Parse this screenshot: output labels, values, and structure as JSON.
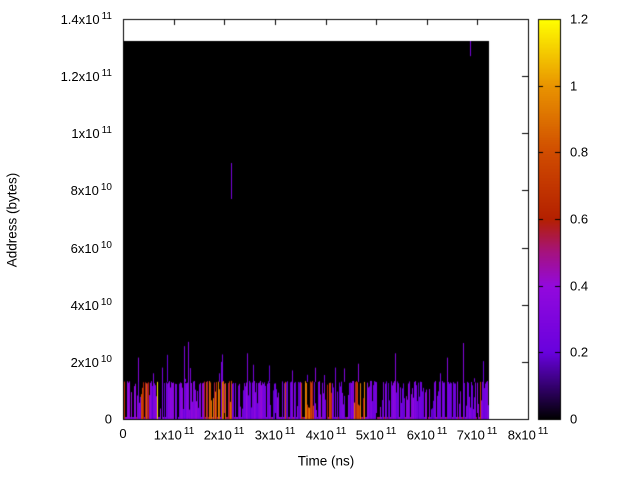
{
  "chart_data": {
    "type": "heatmap",
    "title": "",
    "xlabel": "Time (ns)",
    "ylabel": "Address (bytes)",
    "xlim": [
      0,
      800000000000.0
    ],
    "ylim": [
      0,
      140000000000.0
    ],
    "grid": false,
    "plot_background": "#ffffff",
    "data_background": "#000000",
    "x_ticks": [
      {
        "label_m": "0",
        "label_e": "",
        "value": 0
      },
      {
        "label_m": "1x10",
        "label_e": "11",
        "value": 100000000000.0
      },
      {
        "label_m": "2x10",
        "label_e": "11",
        "value": 200000000000.0
      },
      {
        "label_m": "3x10",
        "label_e": "11",
        "value": 300000000000.0
      },
      {
        "label_m": "4x10",
        "label_e": "11",
        "value": 400000000000.0
      },
      {
        "label_m": "5x10",
        "label_e": "11",
        "value": 500000000000.0
      },
      {
        "label_m": "6x10",
        "label_e": "11",
        "value": 600000000000.0
      },
      {
        "label_m": "7x10",
        "label_e": "11",
        "value": 700000000000.0
      },
      {
        "label_m": "8x10",
        "label_e": "11",
        "value": 800000000000.0
      }
    ],
    "y_ticks": [
      {
        "label_m": "0",
        "label_e": "",
        "value": 0
      },
      {
        "label_m": "2x10",
        "label_e": "10",
        "value": 20000000000.0
      },
      {
        "label_m": "4x10",
        "label_e": "10",
        "value": 40000000000.0
      },
      {
        "label_m": "6x10",
        "label_e": "10",
        "value": 60000000000.0
      },
      {
        "label_m": "8x10",
        "label_e": "10",
        "value": 80000000000.0
      },
      {
        "label_m": "1x10",
        "label_e": "11",
        "value": 100000000000.0
      },
      {
        "label_m": "1.2x10",
        "label_e": "11",
        "value": 120000000000.0
      },
      {
        "label_m": "1.4x10",
        "label_e": "11",
        "value": 140000000000.0
      }
    ],
    "colorbar": {
      "position": "right",
      "min": 0,
      "max": 1.2,
      "ticks": [
        {
          "label": "0",
          "value": 0
        },
        {
          "label": "0.2",
          "value": 0.2
        },
        {
          "label": "0.4",
          "value": 0.4
        },
        {
          "label": "0.6",
          "value": 0.6
        },
        {
          "label": "0.8",
          "value": 0.8
        },
        {
          "label": "1",
          "value": 1.0
        },
        {
          "label": "1.2",
          "value": 1.2
        }
      ]
    },
    "palette_stops": [
      {
        "v": 0.0,
        "color": "#000000"
      },
      {
        "v": 0.2,
        "color": "#6801dd"
      },
      {
        "v": 0.4,
        "color": "#9309dd"
      },
      {
        "v": 0.5,
        "color": "#a51280"
      },
      {
        "v": 0.6,
        "color": "#b42000"
      },
      {
        "v": 0.8,
        "color": "#d04c00"
      },
      {
        "v": 1.0,
        "color": "#e99400"
      },
      {
        "v": 1.2,
        "color": "#ffff00"
      }
    ],
    "data_region": {
      "t_min": 0,
      "t_max": 723000000000.0,
      "addr_min": 0,
      "addr_max": 132300000000.0,
      "background_value": 0
    },
    "activity_band": {
      "description": "dense band of vertical access spikes near low addresses",
      "addr_top": 13000000000.0,
      "t_start": 0,
      "t_end": 723000000000.0,
      "coverage": 0.8,
      "cool_value_range": [
        0.17,
        0.42
      ],
      "hot_value_range": [
        0.5,
        0.95
      ],
      "yellow_value_range": [
        1.0,
        1.2
      ],
      "hot_cluster_probability": 0.27,
      "overshoot_addr_range": [
        14000000000.0,
        23000000000.0
      ],
      "random_seed": 7
    },
    "highlights": [
      {
        "t": 67000000000.0,
        "addr_top": 13000000000.0,
        "value": 1.15
      },
      {
        "t": 320000000000.0,
        "addr_top": 13000000000.0,
        "value": 0.78
      },
      {
        "t": 705000000000.0,
        "addr_top": 13000000000.0,
        "value": 0.7
      }
    ],
    "tall_spikes": [
      {
        "t": 59000000000.0,
        "addr_top": 16000000000.0,
        "value": 0.3
      },
      {
        "t": 77000000000.0,
        "addr_top": 18000000000.0,
        "value": 0.28
      },
      {
        "t": 121000000000.0,
        "addr_top": 25500000000.0,
        "value": 0.3
      },
      {
        "t": 128000000000.0,
        "addr_top": 27000000000.0,
        "value": 0.32
      },
      {
        "t": 194000000000.0,
        "addr_top": 20000000000.0,
        "value": 0.28
      },
      {
        "t": 245000000000.0,
        "addr_top": 23000000000.0,
        "value": 0.3
      },
      {
        "t": 257000000000.0,
        "addr_top": 19000000000.0,
        "value": 0.27
      },
      {
        "t": 334000000000.0,
        "addr_top": 17000000000.0,
        "value": 0.3
      },
      {
        "t": 419000000000.0,
        "addr_top": 18000000000.0,
        "value": 0.28
      },
      {
        "t": 538000000000.0,
        "addr_top": 23000000000.0,
        "value": 0.33
      },
      {
        "t": 626000000000.0,
        "addr_top": 16000000000.0,
        "value": 0.27
      },
      {
        "t": 672000000000.0,
        "addr_top": 26600000000.0,
        "value": 0.33
      }
    ],
    "streaks": [
      {
        "t": 213000000000.0,
        "addr_from": 77000000000.0,
        "addr_to": 89600000000.0,
        "value": 0.28
      },
      {
        "t": 686000000000.0,
        "addr_from": 127000000000.0,
        "addr_to": 132300000000.0,
        "value": 0.28
      }
    ]
  }
}
